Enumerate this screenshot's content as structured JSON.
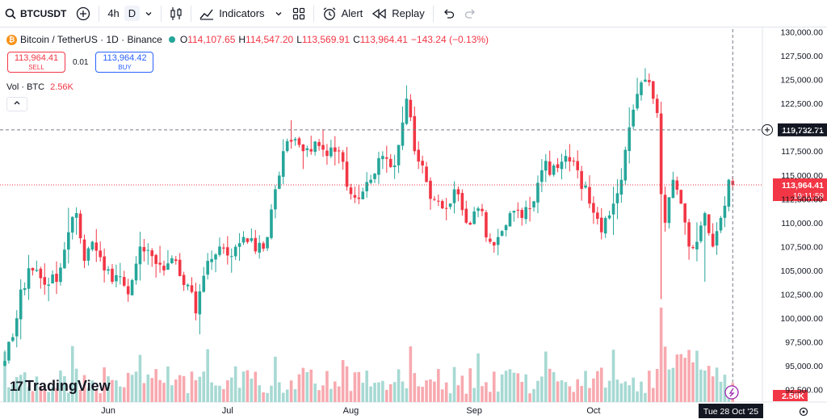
{
  "toolbar": {
    "symbol": "BTCUSDT",
    "timeframe_4h": "4h",
    "timeframe_d": "D",
    "indicators": "Indicators",
    "alert": "Alert",
    "replay": "Replay"
  },
  "legend": {
    "title": "Bitcoin / TetherUS · 1D · Binance",
    "o_label": "O",
    "o": "114,107.65",
    "h_label": "H",
    "h": "114,547.20",
    "l_label": "L",
    "l": "113,569.91",
    "c_label": "C",
    "c": "113,964.41",
    "change": "−143.24 (−0.13%)"
  },
  "trade": {
    "sell_price": "113,964.41",
    "sell_label": "SELL",
    "spread": "0.01",
    "buy_price": "113,964.42",
    "buy_label": "BUY"
  },
  "volume": {
    "label": "Vol · BTC",
    "value": "2.56K"
  },
  "branding": "TradingView",
  "colors": {
    "up": "#26a69a",
    "down": "#f23645",
    "vol_up": "#a7d9d3",
    "vol_down": "#f7a9af"
  },
  "chart_data": {
    "type": "candlestick",
    "symbol": "Bitcoin / TetherUS",
    "interval": "1D",
    "exchange": "Binance",
    "y_ticks": [
      130000,
      127500,
      125000,
      122500,
      120000,
      117500,
      115000,
      112500,
      110000,
      107500,
      105000,
      102500,
      100000,
      97500,
      95000,
      92500
    ],
    "y_tick_labels": [
      "130,000.00",
      "127,500.00",
      "125,000.00",
      "122,500.00",
      "120,000.00",
      "117,500.00",
      "115,000.00",
      "112,500.00",
      "110,000.00",
      "107,500.00",
      "105,000.00",
      "102,500.00",
      "100,000.00",
      "97,500.00",
      "95,000.00",
      "92,500.00"
    ],
    "y_range": [
      91200,
      130300
    ],
    "x_ticks": [
      {
        "label": "Jun",
        "index": 26
      },
      {
        "label": "Jul",
        "index": 56
      },
      {
        "label": "Aug",
        "index": 87
      },
      {
        "label": "Sep",
        "index": 118
      },
      {
        "label": "Oct",
        "index": 148
      }
    ],
    "current_price": 113964.41,
    "current_price_label": "113,964.41",
    "countdown": "19:11:59",
    "crosshair_price": 119732.71,
    "crosshair_price_label": "119,732.71",
    "crosshair_date": "Tue 28 Oct '25",
    "volume_last_label": "2.56K",
    "keypoints": [
      [
        0,
        95500,
        2
      ],
      [
        2,
        98000,
        3
      ],
      [
        4,
        103000,
        4
      ],
      [
        7,
        105000,
        2
      ],
      [
        10,
        103500,
        2
      ],
      [
        13,
        103800,
        2
      ],
      [
        16,
        109000,
        3
      ],
      [
        18,
        111000,
        3
      ],
      [
        20,
        106000,
        2
      ],
      [
        22,
        108000,
        2
      ],
      [
        25,
        105000,
        2
      ],
      [
        28,
        104500,
        2
      ],
      [
        31,
        102500,
        2
      ],
      [
        34,
        107500,
        2
      ],
      [
        37,
        106500,
        2
      ],
      [
        40,
        105000,
        2
      ],
      [
        43,
        106000,
        2
      ],
      [
        46,
        103500,
        2
      ],
      [
        48,
        100500,
        3
      ],
      [
        51,
        106000,
        2
      ],
      [
        54,
        107500,
        2
      ],
      [
        57,
        106500,
        2
      ],
      [
        60,
        108500,
        2
      ],
      [
        63,
        107000,
        2
      ],
      [
        66,
        108500,
        2
      ],
      [
        68,
        113500,
        3
      ],
      [
        70,
        117500,
        3
      ],
      [
        72,
        118500,
        2
      ],
      [
        75,
        117500,
        2
      ],
      [
        78,
        118500,
        2
      ],
      [
        81,
        117000,
        2
      ],
      [
        84,
        117500,
        2
      ],
      [
        87,
        113000,
        3
      ],
      [
        89,
        112500,
        2
      ],
      [
        92,
        114500,
        2
      ],
      [
        95,
        117000,
        2
      ],
      [
        98,
        116000,
        2
      ],
      [
        100,
        120500,
        3
      ],
      [
        101,
        123000,
        3
      ],
      [
        103,
        117500,
        2
      ],
      [
        105,
        116000,
        2
      ],
      [
        107,
        112500,
        3
      ],
      [
        110,
        111500,
        2
      ],
      [
        113,
        113500,
        2
      ],
      [
        116,
        110000,
        2
      ],
      [
        119,
        111500,
        2
      ],
      [
        122,
        108000,
        2
      ],
      [
        124,
        108500,
        2
      ],
      [
        127,
        111000,
        2
      ],
      [
        130,
        110500,
        2
      ],
      [
        132,
        111500,
        2
      ],
      [
        135,
        115500,
        2
      ],
      [
        138,
        116000,
        2
      ],
      [
        141,
        117000,
        2
      ],
      [
        144,
        115500,
        2
      ],
      [
        147,
        112000,
        2
      ],
      [
        150,
        109000,
        2
      ],
      [
        153,
        112000,
        2
      ],
      [
        155,
        114500,
        2
      ],
      [
        157,
        120000,
        3
      ],
      [
        159,
        123500,
        3
      ],
      [
        161,
        125000,
        3
      ],
      [
        163,
        123000,
        2
      ],
      [
        164,
        121500,
        2
      ],
      [
        165,
        113000,
        3
      ],
      [
        166,
        110000,
        3
      ],
      [
        168,
        114500,
        2
      ],
      [
        170,
        112000,
        2
      ],
      [
        172,
        107500,
        2
      ],
      [
        174,
        108000,
        2
      ],
      [
        176,
        111000,
        2
      ],
      [
        178,
        107500,
        2
      ],
      [
        180,
        110500,
        2
      ],
      [
        182,
        114500,
        2
      ],
      [
        183,
        113964.41,
        1
      ]
    ]
  }
}
